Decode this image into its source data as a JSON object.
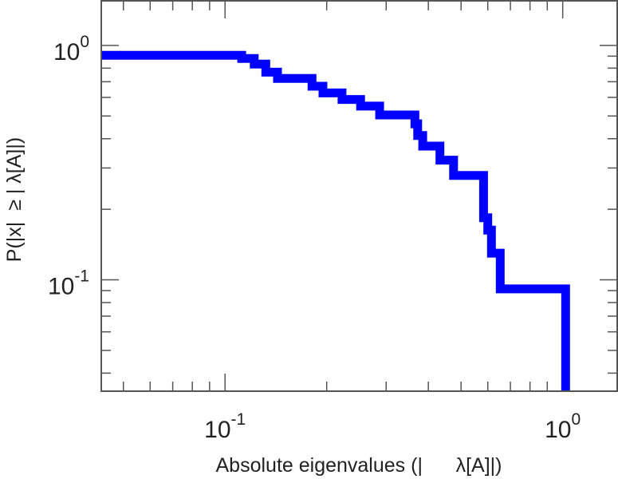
{
  "chart_data": {
    "type": "line",
    "title": "",
    "xlabel": "Absolute eigenvalues (|      λ[A]|)",
    "ylabel": "P(|x|  ≥ | λ[A]|)",
    "x_scale": "log",
    "y_scale": "log",
    "xlim": [
      0.043,
      1.45
    ],
    "ylim": [
      0.0335,
      1.55
    ],
    "grid": false,
    "legend": "none",
    "x_ticks": [
      {
        "value": 0.1,
        "base": "10",
        "exp": "-1"
      },
      {
        "value": 1.0,
        "base": "10",
        "exp": "0"
      }
    ],
    "y_ticks": [
      {
        "value": 0.1,
        "base": "10",
        "exp": "-1"
      },
      {
        "value": 1.0,
        "base": "10",
        "exp": "0"
      }
    ],
    "series": [
      {
        "color": "#0000ff",
        "style": "step",
        "x": [
          0.043,
          0.112,
          0.112,
          0.122,
          0.122,
          0.132,
          0.132,
          0.143,
          0.143,
          0.181,
          0.181,
          0.195,
          0.195,
          0.222,
          0.222,
          0.252,
          0.252,
          0.287,
          0.287,
          0.365,
          0.365,
          0.372,
          0.372,
          0.385,
          0.385,
          0.433,
          0.433,
          0.475,
          0.475,
          0.583,
          0.583,
          0.6,
          0.6,
          0.615,
          0.615,
          0.653,
          0.653,
          1.02,
          1.02
        ],
        "y": [
          0.908,
          0.908,
          0.88,
          0.88,
          0.833,
          0.833,
          0.769,
          0.769,
          0.723,
          0.723,
          0.67,
          0.67,
          0.627,
          0.627,
          0.588,
          0.588,
          0.551,
          0.551,
          0.505,
          0.505,
          0.463,
          0.463,
          0.413,
          0.413,
          0.372,
          0.372,
          0.324,
          0.324,
          0.279,
          0.279,
          0.184,
          0.184,
          0.163,
          0.163,
          0.13,
          0.13,
          0.0915,
          0.0915,
          0.0335
        ]
      }
    ]
  }
}
